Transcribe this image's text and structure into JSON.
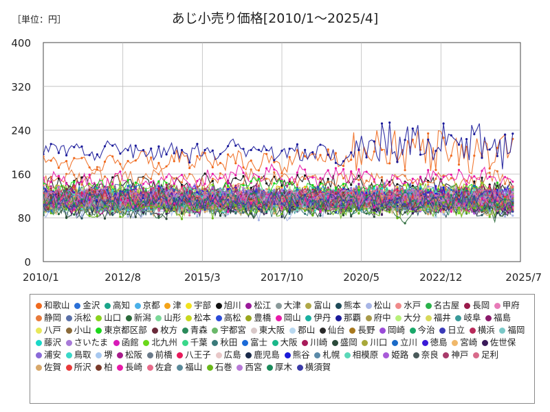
{
  "unit_label": "［単位：円］",
  "chart_data": {
    "type": "line",
    "title": "あじ小売り価格[2010/1～2025/4]",
    "x_start": "2010-01",
    "x_end": "2025-04",
    "xlim": [
      "2010-01",
      "2025-07"
    ],
    "ylim": [
      0,
      400
    ],
    "y_ticks": [
      "0",
      "80",
      "160",
      "240",
      "320",
      "400"
    ],
    "x_ticks": [
      {
        "label": "2010/1",
        "date": "2010-01"
      },
      {
        "label": "2012/8",
        "date": "2012-08"
      },
      {
        "label": "2015/3",
        "date": "2015-03"
      },
      {
        "label": "2017/10",
        "date": "2017-10"
      },
      {
        "label": "2020/5",
        "date": "2020-05"
      },
      {
        "label": "2022/12",
        "date": "2022-12"
      },
      {
        "label": "2025/7",
        "date": "2025-07"
      }
    ],
    "grid": true,
    "legend_position": "bottom",
    "series": [
      {
        "name": "和歌山",
        "color": "#f06a1e",
        "level": 185
      },
      {
        "name": "金沢",
        "color": "#2a6fd6",
        "level": 118
      },
      {
        "name": "高知",
        "color": "#1aa58a",
        "level": 112
      },
      {
        "name": "京都",
        "color": "#4ab0e8",
        "level": 105
      },
      {
        "name": "津",
        "color": "#f4a318",
        "level": 120
      },
      {
        "name": "宇部",
        "color": "#f2e21e",
        "level": 115
      },
      {
        "name": "旭川",
        "color": "#111111",
        "level": 140
      },
      {
        "name": "松江",
        "color": "#9a1a9a",
        "level": 125
      },
      {
        "name": "大津",
        "color": "#8a9a9a",
        "level": 110
      },
      {
        "name": "富山",
        "color": "#b0a848",
        "level": 118
      },
      {
        "name": "熊本",
        "color": "#1e4a58",
        "level": 102
      },
      {
        "name": "松山",
        "color": "#a8b6e6",
        "level": 98
      },
      {
        "name": "水戸",
        "color": "#f08a8a",
        "level": 122
      },
      {
        "name": "名古屋",
        "color": "#2ab24a",
        "level": 116
      },
      {
        "name": "長岡",
        "color": "#9a1a4a",
        "level": 108
      },
      {
        "name": "甲府",
        "color": "#e87ab8",
        "level": 112
      },
      {
        "name": "静岡",
        "color": "#e87a3a",
        "level": 150
      },
      {
        "name": "浜松",
        "color": "#5a70a8",
        "level": 118
      },
      {
        "name": "山口",
        "color": "#8ad21e",
        "level": 124
      },
      {
        "name": "新潟",
        "color": "#2a6a3a",
        "level": 96
      },
      {
        "name": "山形",
        "color": "#7ad898",
        "level": 110
      },
      {
        "name": "松本",
        "color": "#c8d81e",
        "level": 120
      },
      {
        "name": "高松",
        "color": "#2a4ad8",
        "level": 114
      },
      {
        "name": "豊橋",
        "color": "#9aa61e",
        "level": 110
      },
      {
        "name": "岡山",
        "color": "#e81aa8",
        "level": 150
      },
      {
        "name": "伊丹",
        "color": "#1ab0a0",
        "level": 112
      },
      {
        "name": "那覇",
        "color": "#1a1a9a",
        "level": 200
      },
      {
        "name": "府中",
        "color": "#a89a4a",
        "level": 116
      },
      {
        "name": "大分",
        "color": "#b8f07a",
        "level": 118
      },
      {
        "name": "福井",
        "color": "#d8d85a",
        "level": 112
      },
      {
        "name": "岐阜",
        "color": "#3a9a9a",
        "level": 106
      },
      {
        "name": "福島",
        "color": "#8a1a6a",
        "level": 104
      },
      {
        "name": "八戸",
        "color": "#e8e85a",
        "level": 118
      },
      {
        "name": "小山",
        "color": "#8a6a3a",
        "level": 110
      },
      {
        "name": "東京都区部",
        "color": "#1ad81a",
        "level": 130
      },
      {
        "name": "枚方",
        "color": "#6a2a3a",
        "level": 114
      },
      {
        "name": "青森",
        "color": "#2a8a5a",
        "level": 108
      },
      {
        "name": "宇都宮",
        "color": "#6ab86a",
        "level": 116
      },
      {
        "name": "東大阪",
        "color": "#d8c8c8",
        "level": 112
      },
      {
        "name": "郡山",
        "color": "#b8d8f0",
        "level": 104
      },
      {
        "name": "仙台",
        "color": "#2a2a2a",
        "level": 118
      },
      {
        "name": "長野",
        "color": "#a8781e",
        "level": 110
      },
      {
        "name": "岡崎",
        "color": "#9a4ad8",
        "level": 112
      },
      {
        "name": "今治",
        "color": "#1aa86a",
        "level": 116
      },
      {
        "name": "日立",
        "color": "#3a3ab8",
        "level": 108
      },
      {
        "name": "横浜",
        "color": "#b82a5a",
        "level": 120
      },
      {
        "name": "福岡",
        "color": "#7ac8c8",
        "level": 114
      },
      {
        "name": "藤沢",
        "color": "#1ad8c8",
        "level": 116
      },
      {
        "name": "さいたま",
        "color": "#a87ad8",
        "level": 118
      },
      {
        "name": "函館",
        "color": "#d81ab8",
        "level": 112
      },
      {
        "name": "北九州",
        "color": "#6ad81a",
        "level": 106
      },
      {
        "name": "千葉",
        "color": "#3ad88a",
        "level": 114
      },
      {
        "name": "秋田",
        "color": "#3a7a7a",
        "level": 100
      },
      {
        "name": "富士",
        "color": "#1a6ad8",
        "level": 110
      },
      {
        "name": "大阪",
        "color": "#1ab88a",
        "level": 116
      },
      {
        "name": "川崎",
        "color": "#a81a5a",
        "level": 114
      },
      {
        "name": "盛岡",
        "color": "#2a4a3a",
        "level": 98
      },
      {
        "name": "川口",
        "color": "#a8a83a",
        "level": 112
      },
      {
        "name": "立川",
        "color": "#1a6ac8",
        "level": 118
      },
      {
        "name": "徳島",
        "color": "#3a1ad8",
        "level": 120
      },
      {
        "name": "宮崎",
        "color": "#f0b86a",
        "level": 108
      },
      {
        "name": "佐世保",
        "color": "#3a1a5a",
        "level": 104
      },
      {
        "name": "浦安",
        "color": "#8a6ad8",
        "level": 116
      },
      {
        "name": "鳥取",
        "color": "#3ad8c8",
        "level": 110
      },
      {
        "name": "堺",
        "color": "#a8c8f0",
        "level": 112
      },
      {
        "name": "松阪",
        "color": "#a81a8a",
        "level": 114
      },
      {
        "name": "前橋",
        "color": "#6a7a8a",
        "level": 106
      },
      {
        "name": "八王子",
        "color": "#e81a5a",
        "level": 118
      },
      {
        "name": "広島",
        "color": "#e8c8c8",
        "level": 112
      },
      {
        "name": "鹿児島",
        "color": "#1a2a4a",
        "level": 102
      },
      {
        "name": "熊谷",
        "color": "#1a1ad8",
        "level": 116
      },
      {
        "name": "札幌",
        "color": "#5a8aa8",
        "level": 110
      },
      {
        "name": "相模原",
        "color": "#5ad8b8",
        "level": 114
      },
      {
        "name": "姫路",
        "color": "#a85ad8",
        "level": 112
      },
      {
        "name": "奈良",
        "color": "#4a5a5a",
        "level": 108
      },
      {
        "name": "神戸",
        "color": "#a83a6a",
        "level": 118
      },
      {
        "name": "足利",
        "color": "#d86a8a",
        "level": 110
      },
      {
        "name": "佐賀",
        "color": "#d8a86a",
        "level": 106
      },
      {
        "name": "所沢",
        "color": "#e83a3a",
        "level": 114
      },
      {
        "name": "柏",
        "color": "#7a3a2a",
        "level": 112
      },
      {
        "name": "長崎",
        "color": "#e81aa8",
        "level": 108
      },
      {
        "name": "佐倉",
        "color": "#e86a8a",
        "level": 116
      },
      {
        "name": "福山",
        "color": "#5a8a9a",
        "level": 104
      },
      {
        "name": "石巻",
        "color": "#6ab81a",
        "level": 100
      },
      {
        "name": "西宮",
        "color": "#b87ad8",
        "level": 120
      },
      {
        "name": "厚木",
        "color": "#1a8a5a",
        "level": 112
      },
      {
        "name": "横須賀",
        "color": "#3a3aa8",
        "level": 110
      }
    ]
  }
}
